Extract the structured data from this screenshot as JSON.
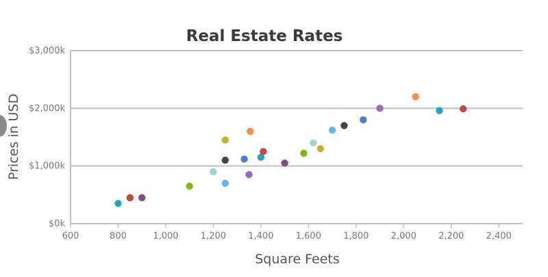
{
  "chart_data": {
    "type": "scatter",
    "title": "Real Estate Rates",
    "xlabel": "Square Feets",
    "ylabel": "Prices in USD",
    "xlim": [
      600,
      2500
    ],
    "ylim": [
      0,
      3000
    ],
    "x_ticks": [
      600,
      800,
      1000,
      1200,
      1400,
      1600,
      1800,
      2000,
      2200,
      2400
    ],
    "x_tick_labels": [
      "600",
      "800",
      "1,000",
      "1,200",
      "1,400",
      "1,600",
      "1,800",
      "2,000",
      "2,200",
      "2,400"
    ],
    "y_ticks": [
      0,
      1000,
      2000,
      3000
    ],
    "y_tick_labels": [
      "$0k",
      "$1,000k",
      "$2,000k",
      "$3,000k"
    ],
    "grid": "horizontal",
    "points": [
      {
        "x": 800,
        "y": 350,
        "color": "#2aa2b5"
      },
      {
        "x": 850,
        "y": 450,
        "color": "#c0474a"
      },
      {
        "x": 900,
        "y": 450,
        "color": "#7e4f82"
      },
      {
        "x": 1100,
        "y": 650,
        "color": "#84b31a"
      },
      {
        "x": 1200,
        "y": 900,
        "color": "#9fd4d4"
      },
      {
        "x": 1250,
        "y": 700,
        "color": "#5fb7e6"
      },
      {
        "x": 1250,
        "y": 1100,
        "color": "#444444"
      },
      {
        "x": 1250,
        "y": 1450,
        "color": "#c8b22a"
      },
      {
        "x": 1330,
        "y": 1120,
        "color": "#4f7fbf"
      },
      {
        "x": 1350,
        "y": 850,
        "color": "#9d6bb5"
      },
      {
        "x": 1355,
        "y": 1600,
        "color": "#ef9148"
      },
      {
        "x": 1400,
        "y": 1150,
        "color": "#2aa2b5"
      },
      {
        "x": 1410,
        "y": 1250,
        "color": "#c0474a"
      },
      {
        "x": 1500,
        "y": 1050,
        "color": "#7e4f82"
      },
      {
        "x": 1580,
        "y": 1220,
        "color": "#84b31a"
      },
      {
        "x": 1620,
        "y": 1400,
        "color": "#9fd4d4"
      },
      {
        "x": 1650,
        "y": 1300,
        "color": "#c8b22a"
      },
      {
        "x": 1700,
        "y": 1620,
        "color": "#5fb7e6"
      },
      {
        "x": 1750,
        "y": 1700,
        "color": "#444444"
      },
      {
        "x": 1830,
        "y": 1800,
        "color": "#4f7fbf"
      },
      {
        "x": 1900,
        "y": 2000,
        "color": "#9d6bb5"
      },
      {
        "x": 2050,
        "y": 2200,
        "color": "#ef9148"
      },
      {
        "x": 2150,
        "y": 1960,
        "color": "#2aa2b5"
      },
      {
        "x": 2250,
        "y": 1990,
        "color": "#c0474a"
      }
    ]
  }
}
